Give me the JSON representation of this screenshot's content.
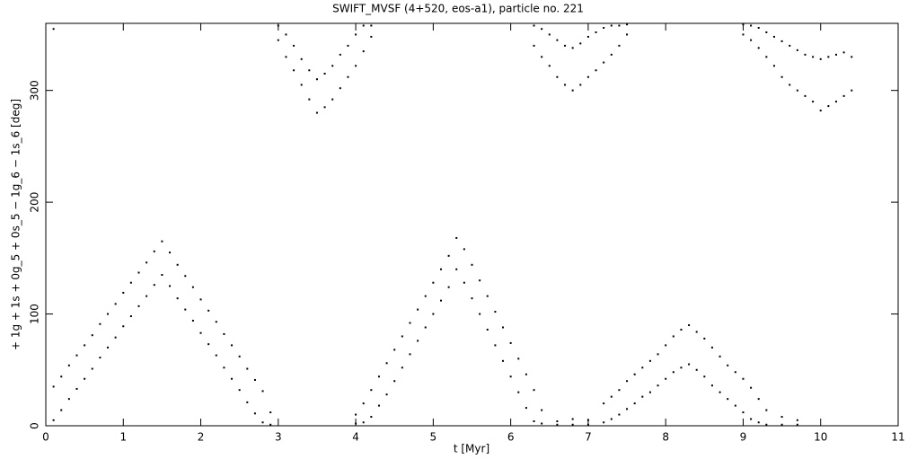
{
  "chart_data": {
    "type": "scatter",
    "title": "SWIFT_MVSF (4+520, eos-a1), particle no. 221",
    "x_label": "t [Myr]",
    "y_label": "+ 1g + 1s + 0g_5 + 0s_5 − 1g_6 − 1s_6 [deg]",
    "color": "#000000",
    "xlim": [
      0,
      11
    ],
    "xticks": [
      0,
      1,
      2,
      3,
      4,
      5,
      6,
      7,
      8,
      9,
      10,
      11
    ],
    "ylim": [
      0,
      360
    ],
    "yticks": [
      0,
      100,
      200,
      300
    ],
    "x": [
      0.1,
      0.1,
      0.2,
      0.2,
      0.3,
      0.3,
      0.4,
      0.4,
      0.5,
      0.5,
      0.6,
      0.6,
      0.7,
      0.7,
      0.8,
      0.8,
      0.9,
      0.9,
      1.0,
      1.0,
      1.1,
      1.1,
      1.2,
      1.2,
      1.3,
      1.3,
      1.4,
      1.4,
      1.5,
      1.5,
      1.6,
      1.6,
      1.7,
      1.7,
      1.8,
      1.8,
      1.9,
      1.9,
      2.0,
      2.0,
      2.1,
      2.1,
      2.2,
      2.2,
      2.3,
      2.3,
      2.4,
      2.4,
      2.5,
      2.5,
      2.6,
      2.6,
      2.7,
      2.7,
      2.8,
      2.8,
      2.9,
      2.9,
      3.0,
      3.0,
      3.1,
      3.1,
      3.2,
      3.2,
      3.3,
      3.3,
      3.4,
      3.4,
      3.5,
      3.5,
      3.6,
      3.6,
      3.7,
      3.7,
      3.8,
      3.8,
      3.9,
      3.9,
      4.0,
      4.0,
      4.1,
      4.1,
      4.2,
      4.2,
      4.0,
      4.0,
      4.1,
      4.1,
      4.2,
      4.2,
      4.3,
      4.3,
      4.4,
      4.4,
      4.5,
      4.5,
      4.6,
      4.6,
      4.7,
      4.7,
      4.8,
      4.8,
      4.9,
      4.9,
      5.0,
      5.0,
      5.1,
      5.1,
      5.2,
      5.2,
      5.3,
      5.3,
      5.4,
      5.4,
      5.5,
      5.5,
      5.6,
      5.6,
      5.7,
      5.7,
      5.8,
      5.8,
      5.9,
      5.9,
      6.0,
      6.0,
      6.1,
      6.1,
      6.2,
      6.2,
      6.3,
      6.3,
      6.4,
      6.4,
      6.6,
      6.6,
      6.8,
      6.8,
      7.0,
      7.0,
      7.2,
      7.2,
      7.3,
      7.3,
      7.4,
      7.4,
      7.5,
      7.5,
      7.6,
      7.6,
      7.7,
      7.7,
      7.8,
      7.8,
      7.9,
      7.9,
      8.0,
      8.0,
      8.1,
      8.1,
      8.2,
      8.2,
      8.3,
      8.3,
      8.4,
      8.4,
      8.5,
      8.5,
      8.6,
      8.6,
      8.7,
      8.7,
      8.8,
      8.8,
      8.9,
      8.9,
      9.0,
      9.0,
      9.1,
      9.1,
      9.2,
      9.2,
      9.3,
      9.3,
      9.5,
      9.5,
      9.7,
      9.7,
      6.3,
      6.3,
      6.4,
      6.4,
      6.5,
      6.5,
      6.6,
      6.6,
      6.7,
      6.7,
      6.8,
      6.8,
      6.9,
      6.9,
      7.0,
      7.0,
      7.1,
      7.1,
      7.2,
      7.2,
      7.3,
      7.3,
      7.4,
      7.4,
      7.5,
      7.5,
      9.0,
      9.0,
      9.1,
      9.1,
      9.2,
      9.2,
      9.3,
      9.3,
      9.4,
      9.4,
      9.5,
      9.5,
      9.6,
      9.6,
      9.7,
      9.7,
      9.8,
      9.8,
      9.9,
      9.9,
      10.0,
      10.0,
      10.1,
      10.1,
      10.2,
      10.2,
      10.3,
      10.3,
      10.4,
      10.4,
      0.1
    ],
    "values": [
      35,
      5,
      44,
      14,
      54,
      24,
      63,
      33,
      72,
      42,
      81,
      51,
      91,
      61,
      100,
      70,
      109,
      79,
      119,
      89,
      128,
      98,
      137,
      107,
      146,
      116,
      156,
      126,
      165,
      135,
      155,
      125,
      144,
      114,
      134,
      104,
      124,
      94,
      113,
      83,
      103,
      73,
      93,
      63,
      82,
      52,
      72,
      42,
      62,
      32,
      51,
      21,
      41,
      11,
      31,
      3,
      12,
      1,
      358,
      345,
      350,
      330,
      340,
      318,
      328,
      305,
      318,
      292,
      310,
      280,
      315,
      285,
      322,
      292,
      332,
      302,
      340,
      312,
      350,
      322,
      358,
      335,
      358,
      348,
      10,
      2,
      20,
      3,
      32,
      8,
      44,
      18,
      56,
      28,
      68,
      40,
      80,
      52,
      92,
      64,
      104,
      76,
      116,
      88,
      128,
      100,
      140,
      112,
      152,
      124,
      168,
      140,
      158,
      128,
      144,
      114,
      130,
      100,
      116,
      86,
      102,
      72,
      88,
      58,
      74,
      44,
      60,
      30,
      46,
      16,
      32,
      4,
      14,
      2,
      4,
      1,
      6,
      1,
      5,
      1,
      20,
      3,
      26,
      6,
      32,
      10,
      40,
      15,
      46,
      20,
      52,
      26,
      58,
      30,
      64,
      36,
      72,
      42,
      80,
      48,
      86,
      52,
      90,
      55,
      84,
      50,
      78,
      44,
      70,
      36,
      62,
      30,
      54,
      24,
      48,
      18,
      42,
      12,
      34,
      6,
      24,
      3,
      14,
      1,
      8,
      1,
      5,
      1,
      358,
      340,
      355,
      330,
      350,
      322,
      345,
      312,
      340,
      305,
      338,
      300,
      342,
      305,
      348,
      312,
      352,
      318,
      356,
      325,
      358,
      332,
      358,
      340,
      359,
      350,
      359,
      350,
      358,
      345,
      356,
      338,
      352,
      330,
      348,
      322,
      344,
      312,
      340,
      305,
      336,
      300,
      332,
      295,
      330,
      290,
      328,
      282,
      330,
      286,
      332,
      290,
      334,
      295,
      330,
      300,
      355
    ]
  }
}
